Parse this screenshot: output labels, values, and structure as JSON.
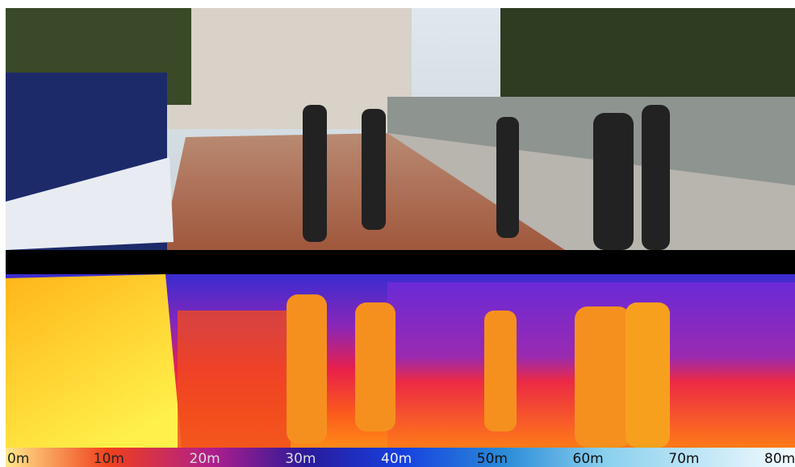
{
  "colorbar": {
    "ticks": [
      "0m",
      "10m",
      "20m",
      "30m",
      "40m",
      "50m",
      "60m",
      "70m",
      "80m"
    ]
  }
}
